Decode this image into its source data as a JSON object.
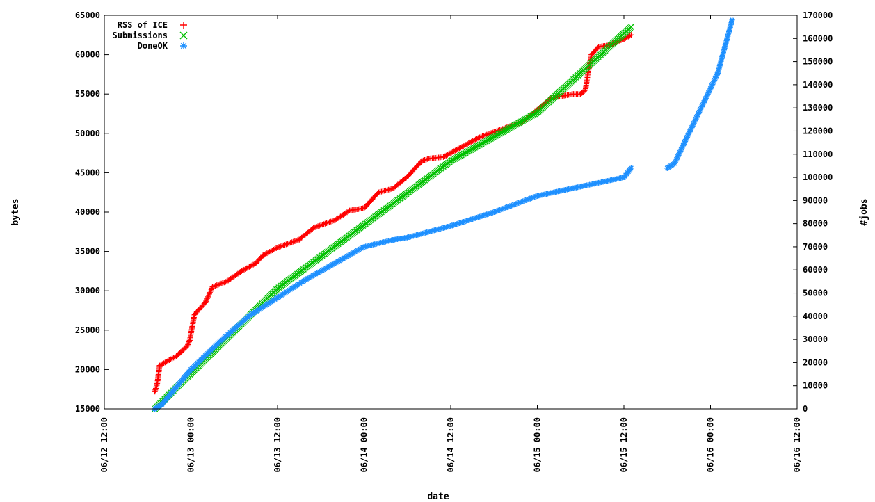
{
  "chart_data": {
    "type": "scatter",
    "title": "",
    "xlabel": "date",
    "ylabel": "bytes",
    "y2label": "#jobs",
    "xlim": [
      "2012-06-12 12:00",
      "2012-06-16 12:00"
    ],
    "ylim": [
      15000,
      65000
    ],
    "y2lim": [
      0,
      170000
    ],
    "x_ticks": [
      "06/12 12:00",
      "06/13 00:00",
      "06/13 12:00",
      "06/14 00:00",
      "06/14 12:00",
      "06/15 00:00",
      "06/15 12:00",
      "06/16 00:00",
      "06/16 12:00"
    ],
    "y_ticks": [
      "15000",
      "20000",
      "25000",
      "30000",
      "35000",
      "40000",
      "45000",
      "50000",
      "55000",
      "60000",
      "65000"
    ],
    "y2_ticks": [
      "0",
      "10000",
      "20000",
      "30000",
      "40000",
      "50000",
      "60000",
      "70000",
      "80000",
      "90000",
      "100000",
      "110000",
      "120000",
      "130000",
      "140000",
      "150000",
      "160000",
      "170000"
    ],
    "grid": false,
    "legend_position": "top-left",
    "series": [
      {
        "name": "RSS of ICE",
        "marker": "+",
        "color": "#ff0000",
        "axis": "left",
        "x": [
          "2012-06-12 19:00",
          "2012-06-12 19:20",
          "2012-06-12 19:40",
          "2012-06-12 21:00",
          "2012-06-12 22:00",
          "2012-06-12 23:30",
          "2012-06-12 23:50",
          "2012-06-13 00:30",
          "2012-06-13 02:00",
          "2012-06-13 03:00",
          "2012-06-13 05:00",
          "2012-06-13 07:00",
          "2012-06-13 09:00",
          "2012-06-13 10:00",
          "2012-06-13 12:00",
          "2012-06-13 15:00",
          "2012-06-13 17:00",
          "2012-06-13 20:00",
          "2012-06-13 22:00",
          "2012-06-14 00:00",
          "2012-06-14 01:00",
          "2012-06-14 02:00",
          "2012-06-14 04:00",
          "2012-06-14 06:00",
          "2012-06-14 08:00",
          "2012-06-14 09:00",
          "2012-06-14 11:00",
          "2012-06-14 13:00",
          "2012-06-14 16:00",
          "2012-06-14 19:00",
          "2012-06-14 22:00",
          "2012-06-15 00:00",
          "2012-06-15 02:00",
          "2012-06-15 05:00",
          "2012-06-15 06:00",
          "2012-06-15 06:40",
          "2012-06-15 07:00",
          "2012-06-15 07:30",
          "2012-06-15 08:30",
          "2012-06-15 10:00",
          "2012-06-15 12:00",
          "2012-06-15 13:00"
        ],
        "y": [
          17200,
          18200,
          20500,
          21200,
          21700,
          23000,
          23700,
          27000,
          28500,
          30500,
          31200,
          32500,
          33500,
          34500,
          35500,
          36500,
          38000,
          39000,
          40200,
          40500,
          41500,
          42500,
          43000,
          44500,
          46500,
          46800,
          47000,
          48000,
          49500,
          50500,
          51500,
          53000,
          54500,
          55000,
          55000,
          55500,
          57500,
          60000,
          61000,
          61200,
          62000,
          62500
        ]
      },
      {
        "name": "Submissions",
        "marker": "x",
        "color": "#00c000",
        "axis": "right",
        "x": [
          "2012-06-12 19:00",
          "2012-06-13 12:00",
          "2012-06-14 12:00",
          "2012-06-15 00:00",
          "2012-06-15 13:00"
        ],
        "y": [
          0,
          52000,
          107000,
          128000,
          165000
        ]
      },
      {
        "name": "DoneOK",
        "marker": "*",
        "color": "#1e90ff",
        "axis": "right",
        "x": [
          "2012-06-12 19:00",
          "2012-06-12 20:00",
          "2012-06-13 00:00",
          "2012-06-13 04:00",
          "2012-06-13 08:00",
          "2012-06-13 12:00",
          "2012-06-13 16:00",
          "2012-06-13 20:00",
          "2012-06-14 00:00",
          "2012-06-14 04:00",
          "2012-06-14 06:00",
          "2012-06-14 12:00",
          "2012-06-14 18:00",
          "2012-06-15 00:00",
          "2012-06-15 06:00",
          "2012-06-15 12:00",
          "2012-06-15 13:00",
          "2012-06-15 18:00",
          "2012-06-15 19:00",
          "2012-06-16 01:00",
          "2012-06-16 03:00"
        ],
        "y": [
          0,
          2000,
          17000,
          29000,
          40000,
          48000,
          56000,
          63000,
          70000,
          73000,
          74000,
          79000,
          85000,
          92000,
          96000,
          100000,
          104000,
          104000,
          106000,
          145000,
          168000
        ],
        "gaps_after": [
          16
        ]
      }
    ]
  }
}
